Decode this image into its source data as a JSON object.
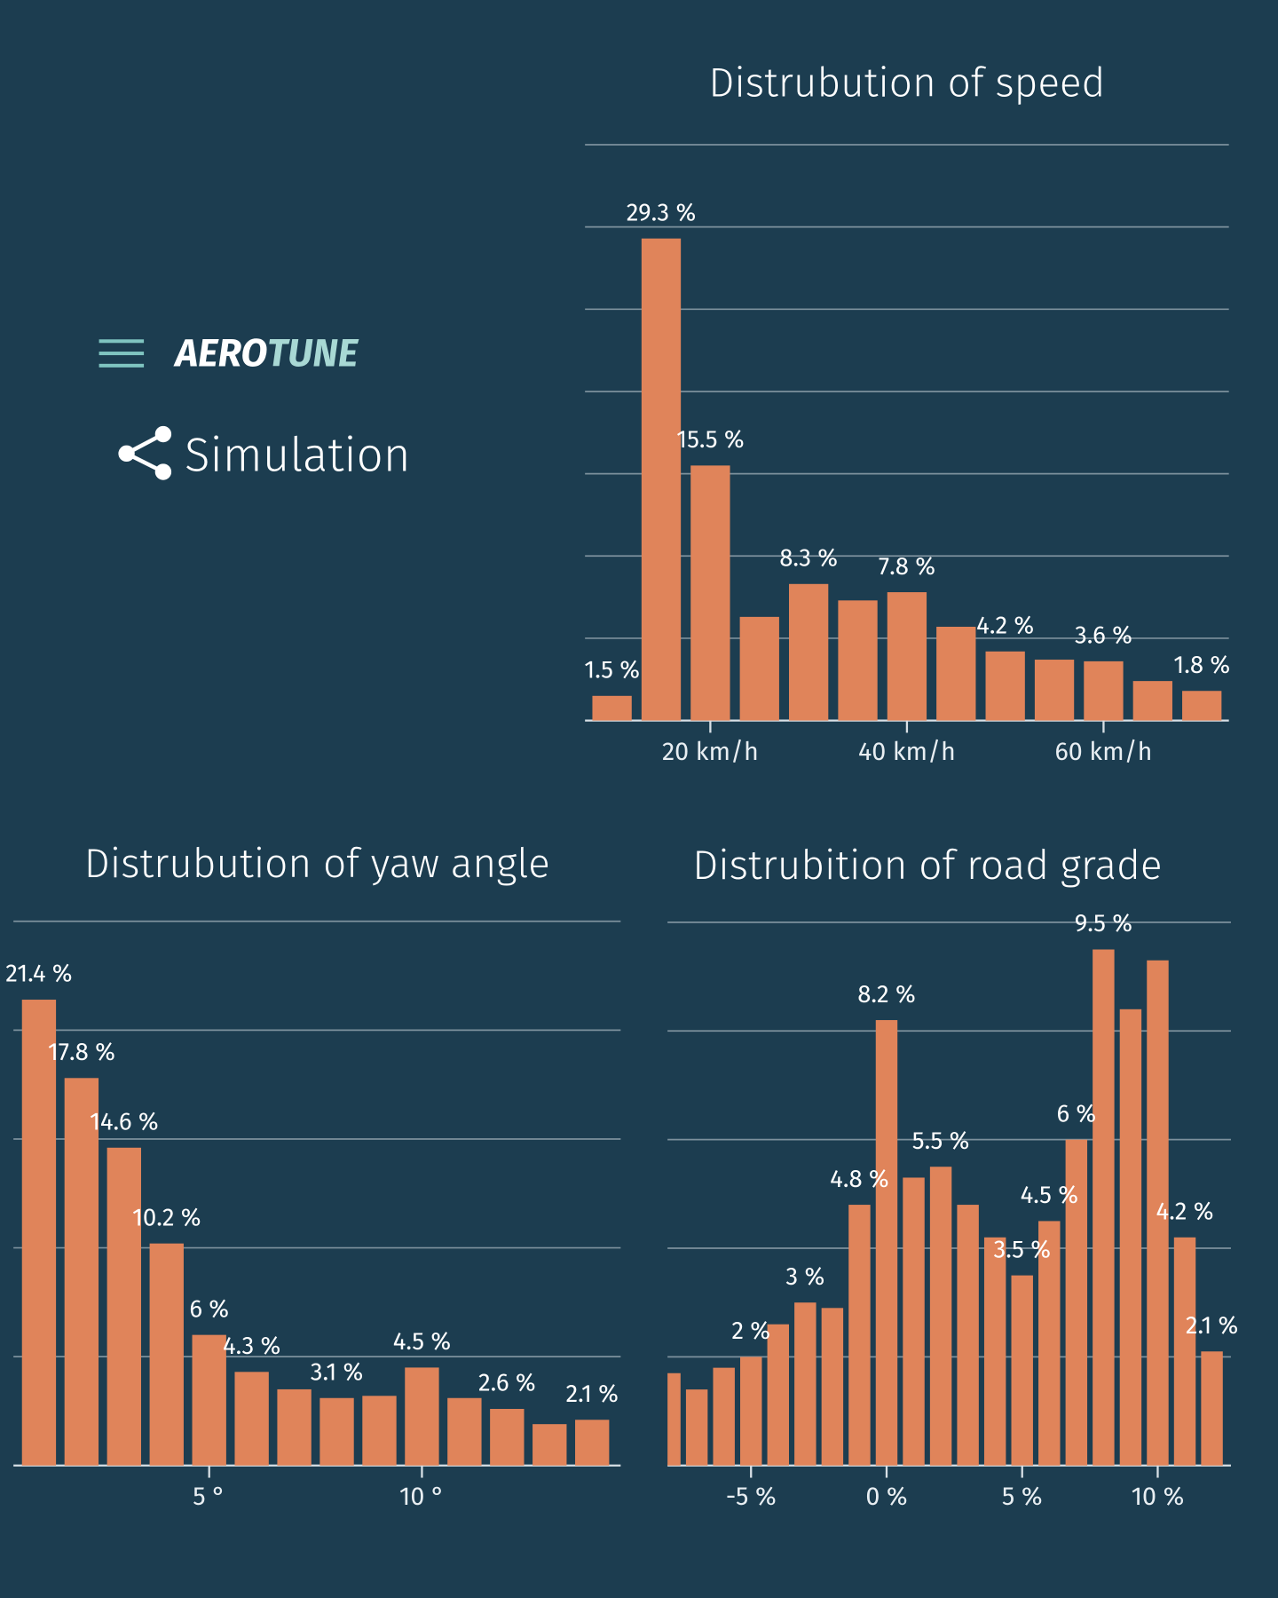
{
  "header": {
    "brand_first": "AERO",
    "brand_second": "TUNE",
    "nav_item": "Simulation"
  },
  "chart_data": [
    {
      "type": "histogram",
      "title": "Distrubution of speed",
      "bins": [
        7.5,
        12.5,
        17.5,
        22.5,
        27.5,
        32.5,
        37.5,
        42.5,
        47.5,
        52.5,
        57.5,
        62.5,
        67.5,
        72.5
      ],
      "values": [
        1.5,
        29.3,
        15.5,
        6.3,
        8.3,
        7.3,
        7.8,
        5.7,
        4.2,
        3.7,
        3.6,
        2.4,
        1.8
      ],
      "value_labels": [
        "1.5 %",
        "29.3 %",
        "15.5 %",
        null,
        "8.3 %",
        null,
        "7.8 %",
        null,
        "4.2 %",
        null,
        "3.6 %",
        null,
        "1.8 %"
      ],
      "xlim": [
        7.25,
        72.75
      ],
      "xticks": [
        {
          "value": 20,
          "label": "20 km/h"
        },
        {
          "value": 40,
          "label": "40 km/h"
        },
        {
          "value": 60,
          "label": "60 km/h"
        }
      ],
      "ylim": [
        0,
        35
      ],
      "yticks": [
        0,
        5,
        10,
        15,
        20,
        25,
        30,
        35
      ],
      "grid": true,
      "color": "#e0845a"
    },
    {
      "type": "histogram",
      "title": "Distrubution of yaw angle",
      "bins": [
        0.5,
        1.5,
        2.5,
        3.5,
        4.5,
        5.5,
        6.5,
        7.5,
        8.5,
        9.5,
        10.5,
        11.5,
        12.5,
        13.5,
        14.5
      ],
      "values": [
        21.4,
        17.8,
        14.6,
        10.2,
        6,
        4.3,
        3.5,
        3.1,
        3.2,
        4.5,
        3.1,
        2.6,
        1.9,
        2.1
      ],
      "value_labels": [
        "21.4 %",
        "17.8 %",
        "14.6 %",
        "10.2 %",
        "6 %",
        "4.3 %",
        null,
        "3.1 %",
        null,
        "4.5 %",
        null,
        "2.6 %",
        null,
        "2.1 %"
      ],
      "xlim": [
        0.4,
        14.67
      ],
      "xticks": [
        {
          "value": 5,
          "label": "5 °"
        },
        {
          "value": 10,
          "label": "10 °"
        }
      ],
      "ylim": [
        0,
        25
      ],
      "yticks": [
        0,
        5,
        10,
        15,
        20,
        25
      ],
      "grid": true,
      "color": "#e0845a"
    },
    {
      "type": "histogram",
      "title": "Distrubition of road grade",
      "bins": [
        -8.5,
        -7.5,
        -6.5,
        -5.5,
        -4.5,
        -3.5,
        -2.5,
        -1.5,
        -0.5,
        0.5,
        1.5,
        2.5,
        3.5,
        4.5,
        5.5,
        6.5,
        7.5,
        8.5,
        9.5,
        10.5,
        11.5,
        12.5
      ],
      "values": [
        1.7,
        1.4,
        1.8,
        2,
        2.6,
        3,
        2.9,
        4.8,
        8.2,
        5.3,
        5.5,
        4.8,
        4.2,
        3.5,
        4.5,
        6,
        9.5,
        8.4,
        9.3,
        4.2,
        2.1
      ],
      "value_labels": [
        null,
        null,
        null,
        "2 %",
        null,
        "3 %",
        null,
        "4.8 %",
        "8.2 %",
        null,
        "5.5 %",
        null,
        null,
        "3.5 %",
        "4.5 %",
        "6 %",
        "9.5 %",
        null,
        null,
        "4.2 %",
        "2.1 %"
      ],
      "xlim": [
        -8.08,
        12.7
      ],
      "xticks": [
        {
          "value": -5,
          "label": "-5 %"
        },
        {
          "value": 0,
          "label": "0 %"
        },
        {
          "value": 5,
          "label": "5 %"
        },
        {
          "value": 10,
          "label": "10 %"
        }
      ],
      "ylim": [
        0,
        10
      ],
      "yticks": [
        0,
        2,
        4,
        6,
        8,
        10
      ],
      "grid": true,
      "color": "#e0845a"
    }
  ]
}
